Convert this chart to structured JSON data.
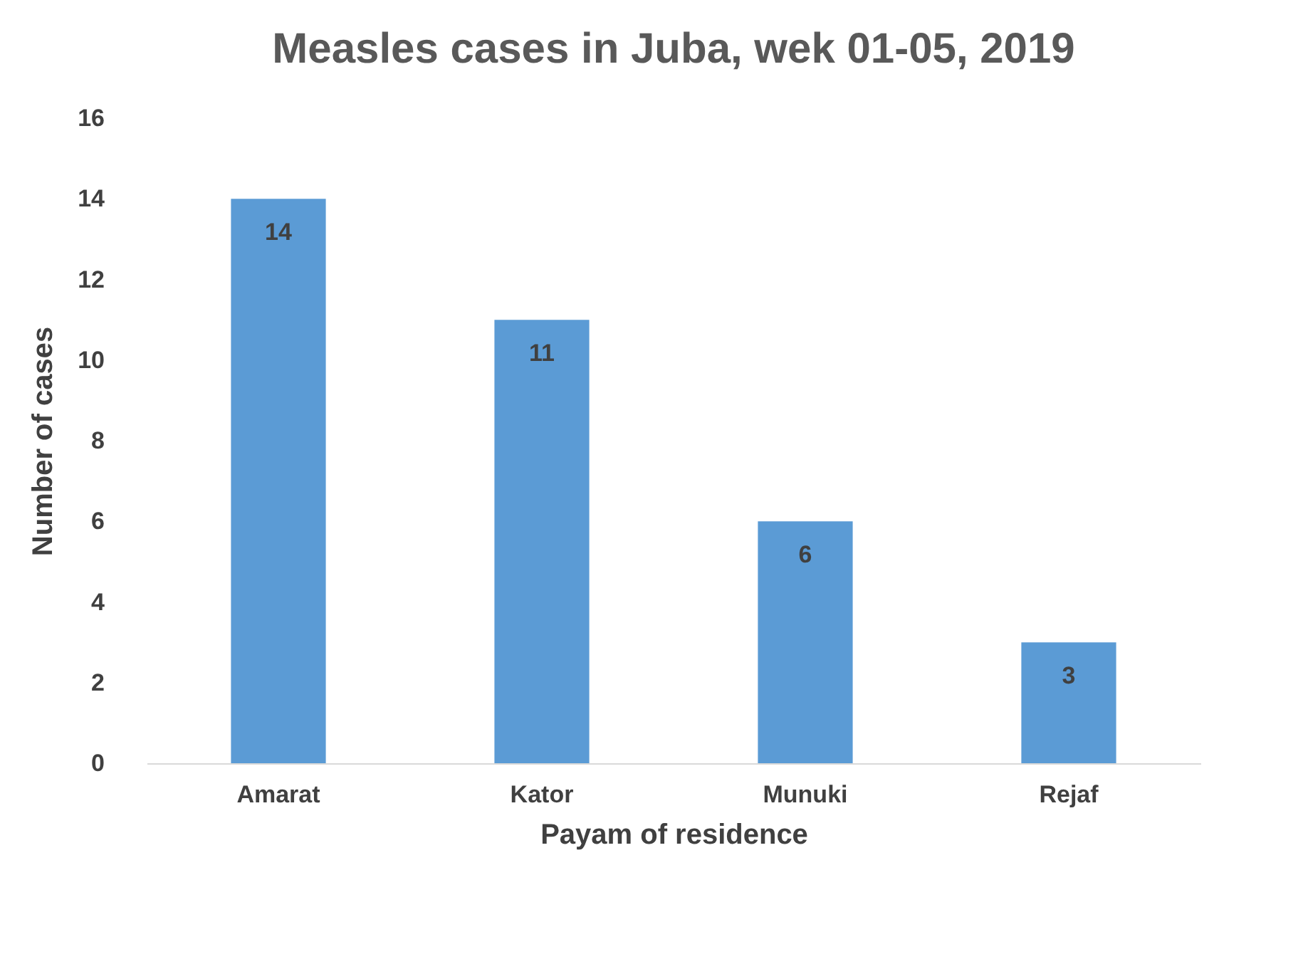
{
  "chart_data": {
    "type": "bar",
    "title": "Measles cases in Juba, wek 01-05, 2019",
    "xlabel": "Payam of residence",
    "ylabel": "Number of cases",
    "categories": [
      "Amarat",
      "Kator",
      "Munuki",
      "Rejaf"
    ],
    "values": [
      14,
      11,
      6,
      3
    ],
    "color": "#5b9bd5",
    "ylim": [
      0,
      16
    ],
    "yticks": [
      0,
      2,
      4,
      6,
      8,
      10,
      12,
      14,
      16
    ],
    "grid": false,
    "data_labels": true
  }
}
